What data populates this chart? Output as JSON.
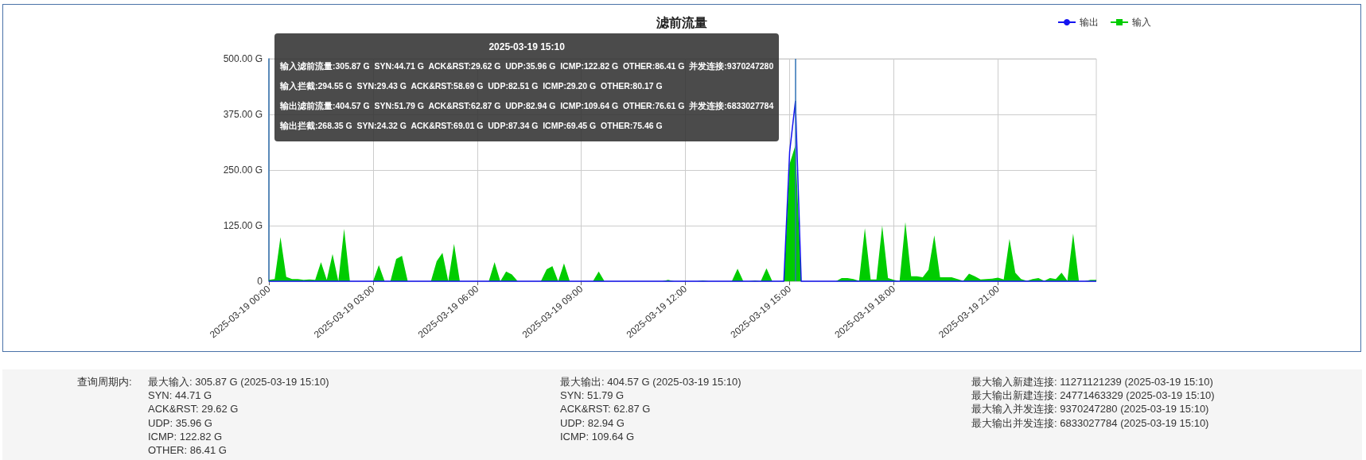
{
  "chart_data": [
    {
      "type": "line",
      "title": "滤前流量",
      "x": [
        "2025-03-19T00:00",
        "2025-03-19T00:10",
        "2025-03-19T00:20",
        "2025-03-19T00:30",
        "2025-03-19T00:40",
        "2025-03-19T00:50",
        "2025-03-19T01:00",
        "2025-03-19T01:10",
        "2025-03-19T01:20",
        "2025-03-19T01:30",
        "2025-03-19T01:40",
        "2025-03-19T01:50",
        "2025-03-19T02:00",
        "2025-03-19T02:10",
        "2025-03-19T02:20",
        "2025-03-19T02:30",
        "2025-03-19T02:40",
        "2025-03-19T02:50",
        "2025-03-19T03:00",
        "2025-03-19T03:10",
        "2025-03-19T03:20",
        "2025-03-19T03:30",
        "2025-03-19T03:40",
        "2025-03-19T03:50",
        "2025-03-19T04:00",
        "2025-03-19T04:10",
        "2025-03-19T04:20",
        "2025-03-19T04:30",
        "2025-03-19T04:40",
        "2025-03-19T04:50",
        "2025-03-19T05:00",
        "2025-03-19T05:10",
        "2025-03-19T05:20",
        "2025-03-19T05:30",
        "2025-03-19T05:40",
        "2025-03-19T05:50",
        "2025-03-19T06:00",
        "2025-03-19T06:10",
        "2025-03-19T06:20",
        "2025-03-19T06:30",
        "2025-03-19T06:40",
        "2025-03-19T06:50",
        "2025-03-19T07:00",
        "2025-03-19T07:10",
        "2025-03-19T07:20",
        "2025-03-19T07:30",
        "2025-03-19T07:40",
        "2025-03-19T07:50",
        "2025-03-19T08:00",
        "2025-03-19T08:10",
        "2025-03-19T08:20",
        "2025-03-19T08:30",
        "2025-03-19T08:40",
        "2025-03-19T08:50",
        "2025-03-19T09:00",
        "2025-03-19T09:10",
        "2025-03-19T09:20",
        "2025-03-19T09:30",
        "2025-03-19T09:40",
        "2025-03-19T09:50",
        "2025-03-19T10:00",
        "2025-03-19T10:10",
        "2025-03-19T10:20",
        "2025-03-19T10:30",
        "2025-03-19T10:40",
        "2025-03-19T10:50",
        "2025-03-19T11:00",
        "2025-03-19T11:10",
        "2025-03-19T11:20",
        "2025-03-19T11:30",
        "2025-03-19T11:40",
        "2025-03-19T11:50",
        "2025-03-19T12:00",
        "2025-03-19T12:10",
        "2025-03-19T12:20",
        "2025-03-19T12:30",
        "2025-03-19T12:40",
        "2025-03-19T12:50",
        "2025-03-19T13:00",
        "2025-03-19T13:10",
        "2025-03-19T13:20",
        "2025-03-19T13:30",
        "2025-03-19T13:40",
        "2025-03-19T13:50",
        "2025-03-19T14:00",
        "2025-03-19T14:10",
        "2025-03-19T14:20",
        "2025-03-19T14:30",
        "2025-03-19T14:40",
        "2025-03-19T14:50",
        "2025-03-19T15:00",
        "2025-03-19T15:10",
        "2025-03-19T15:20",
        "2025-03-19T15:30",
        "2025-03-19T15:40",
        "2025-03-19T15:50",
        "2025-03-19T16:00",
        "2025-03-19T16:10",
        "2025-03-19T16:20",
        "2025-03-19T16:30",
        "2025-03-19T16:40",
        "2025-03-19T16:50",
        "2025-03-19T17:00",
        "2025-03-19T17:10",
        "2025-03-19T17:20",
        "2025-03-19T17:30",
        "2025-03-19T17:40",
        "2025-03-19T17:50",
        "2025-03-19T18:00",
        "2025-03-19T18:10",
        "2025-03-19T18:20",
        "2025-03-19T18:30",
        "2025-03-19T18:40",
        "2025-03-19T18:50",
        "2025-03-19T19:00",
        "2025-03-19T19:10",
        "2025-03-19T19:20",
        "2025-03-19T19:30",
        "2025-03-19T19:40",
        "2025-03-19T19:50",
        "2025-03-19T20:00",
        "2025-03-19T20:10",
        "2025-03-19T20:20",
        "2025-03-19T20:30",
        "2025-03-19T20:40",
        "2025-03-19T20:50",
        "2025-03-19T21:00",
        "2025-03-19T21:10",
        "2025-03-19T21:20",
        "2025-03-19T21:30",
        "2025-03-19T21:40",
        "2025-03-19T21:50",
        "2025-03-19T22:00",
        "2025-03-19T22:10",
        "2025-03-19T22:20",
        "2025-03-19T22:30",
        "2025-03-19T22:40",
        "2025-03-19T22:50",
        "2025-03-19T23:00",
        "2025-03-19T23:10",
        "2025-03-19T23:20",
        "2025-03-19T23:30",
        "2025-03-19T23:40",
        "2025-03-19T23:50"
      ],
      "series": [
        {
          "name": "输出",
          "type": "line",
          "color": "#1414f0",
          "values": [
            0,
            0,
            0,
            0,
            0,
            0,
            0,
            0,
            0,
            0,
            0,
            0,
            0,
            0,
            0,
            0,
            0,
            0,
            0,
            0,
            0,
            0,
            0,
            0,
            0,
            0,
            0,
            0,
            0,
            0,
            0,
            0,
            0,
            0,
            0,
            0,
            0,
            0,
            0,
            0,
            0,
            0,
            0,
            0,
            0,
            0,
            0,
            0,
            0,
            0,
            0,
            0,
            0,
            0,
            0,
            0,
            0,
            0,
            0,
            0,
            0,
            0,
            0,
            0,
            0,
            0,
            0,
            0,
            0,
            0,
            0,
            0,
            0,
            0,
            0,
            0,
            0,
            0,
            0,
            0,
            0,
            0,
            0,
            0,
            0,
            0,
            0,
            0,
            0,
            0,
            291,
            404.57,
            0,
            0,
            0,
            0,
            0,
            0,
            0,
            0,
            0,
            0,
            0,
            0,
            0,
            0,
            0,
            0,
            0,
            0,
            0,
            0,
            0,
            0,
            0,
            0,
            0,
            0,
            0,
            0,
            0,
            0,
            0,
            0,
            0,
            0,
            0,
            0,
            0,
            0,
            0,
            0,
            0,
            0,
            0,
            0,
            0,
            0,
            0,
            0,
            0,
            0,
            0,
            0
          ]
        },
        {
          "name": "输入",
          "type": "area",
          "color": "#00cc00",
          "values": [
            3,
            5,
            99,
            10,
            5,
            5,
            3,
            4,
            3,
            43,
            3,
            61,
            0,
            118,
            0,
            0,
            0,
            0,
            0,
            36,
            0,
            0,
            50,
            57,
            0,
            0,
            0,
            0,
            0,
            45,
            64,
            0,
            84,
            0,
            0,
            0,
            0,
            0,
            0,
            43,
            0,
            22,
            15,
            0,
            0,
            0,
            0,
            0,
            27,
            34,
            0,
            40,
            0,
            0,
            0,
            0,
            0,
            22,
            0,
            0,
            0,
            0,
            0,
            0,
            0,
            0,
            0,
            0,
            0,
            3,
            0,
            0,
            0,
            0,
            0,
            2,
            0,
            0,
            0,
            0,
            0,
            28,
            0,
            0,
            2,
            0,
            29,
            0,
            0,
            0,
            264,
            305.87,
            0,
            0,
            0,
            0,
            0,
            0,
            0,
            7,
            7,
            5,
            1,
            119,
            4,
            4,
            125,
            7,
            3,
            0,
            133,
            11,
            11,
            9,
            26,
            103,
            9,
            9,
            9,
            5,
            1,
            17,
            11,
            4,
            5,
            6,
            8,
            4,
            95,
            19,
            5,
            1,
            5,
            7,
            1,
            7,
            5,
            19,
            1,
            107,
            0,
            0,
            3,
            3
          ]
        }
      ],
      "xlim": [
        "2025-03-19T00:00",
        "2025-03-19T23:50"
      ],
      "xticks": [
        {
          "value": "2025-03-19T00:00",
          "label": "2025-03-19 00:00"
        },
        {
          "value": "2025-03-19T03:00",
          "label": "2025-03-19 03:00"
        },
        {
          "value": "2025-03-19T06:00",
          "label": "2025-03-19 06:00"
        },
        {
          "value": "2025-03-19T09:00",
          "label": "2025-03-19 09:00"
        },
        {
          "value": "2025-03-19T12:00",
          "label": "2025-03-19 12:00"
        },
        {
          "value": "2025-03-19T15:00",
          "label": "2025-03-19 15:00"
        },
        {
          "value": "2025-03-19T18:00",
          "label": "2025-03-19 18:00"
        },
        {
          "value": "2025-03-19T21:00",
          "label": "2025-03-19 21:00"
        }
      ],
      "ylim": [
        0,
        500
      ],
      "yticks": [
        0,
        {
          "value": 125,
          "label": "125.00 G"
        },
        {
          "value": 250,
          "label": "250.00 G"
        },
        {
          "value": 375,
          "label": "375.00 G"
        },
        {
          "value": 500,
          "label": "500.00 G"
        }
      ],
      "grid": true,
      "legend": "top right",
      "ref_lines": [
        {
          "axis": "x",
          "value": "2025-03-19T15:10",
          "color": "#2f72b4"
        }
      ],
      "annotations": [
        "2025-03-19 15:10",
        "输入滤前流量:305.87 G  SYN:44.71 G  ACK&RST:29.62 G  UDP:35.96 G  ICMP:122.82 G  OTHER:86.41 G  并发连接:9370247280",
        "输入拦截:294.55 G  SYN:29.43 G  ACK&RST:58.69 G  UDP:82.51 G  ICMP:29.20 G  OTHER:80.17 G",
        "输出滤前流量:404.57 G  SYN:51.79 G  ACK&RST:62.87 G  UDP:82.94 G  ICMP:109.64 G  OTHER:76.61 G  并发连接:6833027784",
        "输出拦截:268.35 G  SYN:24.32 G  ACK&RST:69.01 G  UDP:87.34 G  ICMP:69.45 G  OTHER:75.46 G"
      ]
    },
    {
      "type": "other",
      "title": "查询周期内:",
      "annotations": [
        "最大输入: 305.87 G (2025-03-19 15:10)",
        "SYN: 44.71 G",
        "ACK&RST: 29.62 G",
        "UDP: 35.96 G",
        "ICMP: 122.82 G",
        "OTHER: 86.41 G"
      ]
    },
    {
      "type": "other",
      "annotations": [
        "最大输出: 404.57 G (2025-03-19 15:10)",
        "SYN: 51.79 G",
        "ACK&RST: 62.87 G",
        "UDP: 82.94 G",
        "ICMP: 109.64 G"
      ]
    },
    {
      "type": "other",
      "annotations": [
        "最大输入新建连接: 11271121239 (2025-03-19 15:10)",
        "最大输出新建连接: 24771463329 (2025-03-19 15:10)",
        "最大输入并发连接: 9370247280 (2025-03-19 15:10)",
        "最大输出并发连接: 6833027784 (2025-03-19 15:10)"
      ]
    }
  ]
}
